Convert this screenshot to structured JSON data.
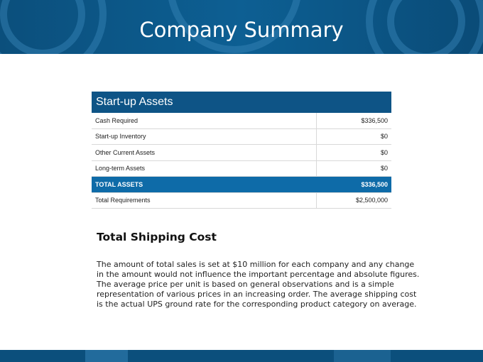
{
  "header": {
    "title": "Company Summary"
  },
  "table": {
    "title": "Start-up Assets",
    "rows": [
      [
        "Cash Required",
        "$336,500"
      ],
      [
        "Start-up Inventory",
        "$0"
      ],
      [
        "Other Current Assets",
        "$0"
      ],
      [
        "Long-term Assets",
        "$0"
      ],
      [
        "TOTAL ASSETS",
        "$336,500"
      ],
      [
        "Total Requirements",
        "$2,500,000"
      ]
    ],
    "highlight_row": 4
  },
  "section": {
    "heading": "Total Shipping Cost",
    "body": "The amount of total sales is set at $10 million for each company and any change in the amount would not influence the important percentage and absolute figures. The average price per unit is based on general observations and is a simple representation of various prices in an increasing order. The average shipping cost is the actual UPS ground rate for the corresponding product category on average."
  }
}
